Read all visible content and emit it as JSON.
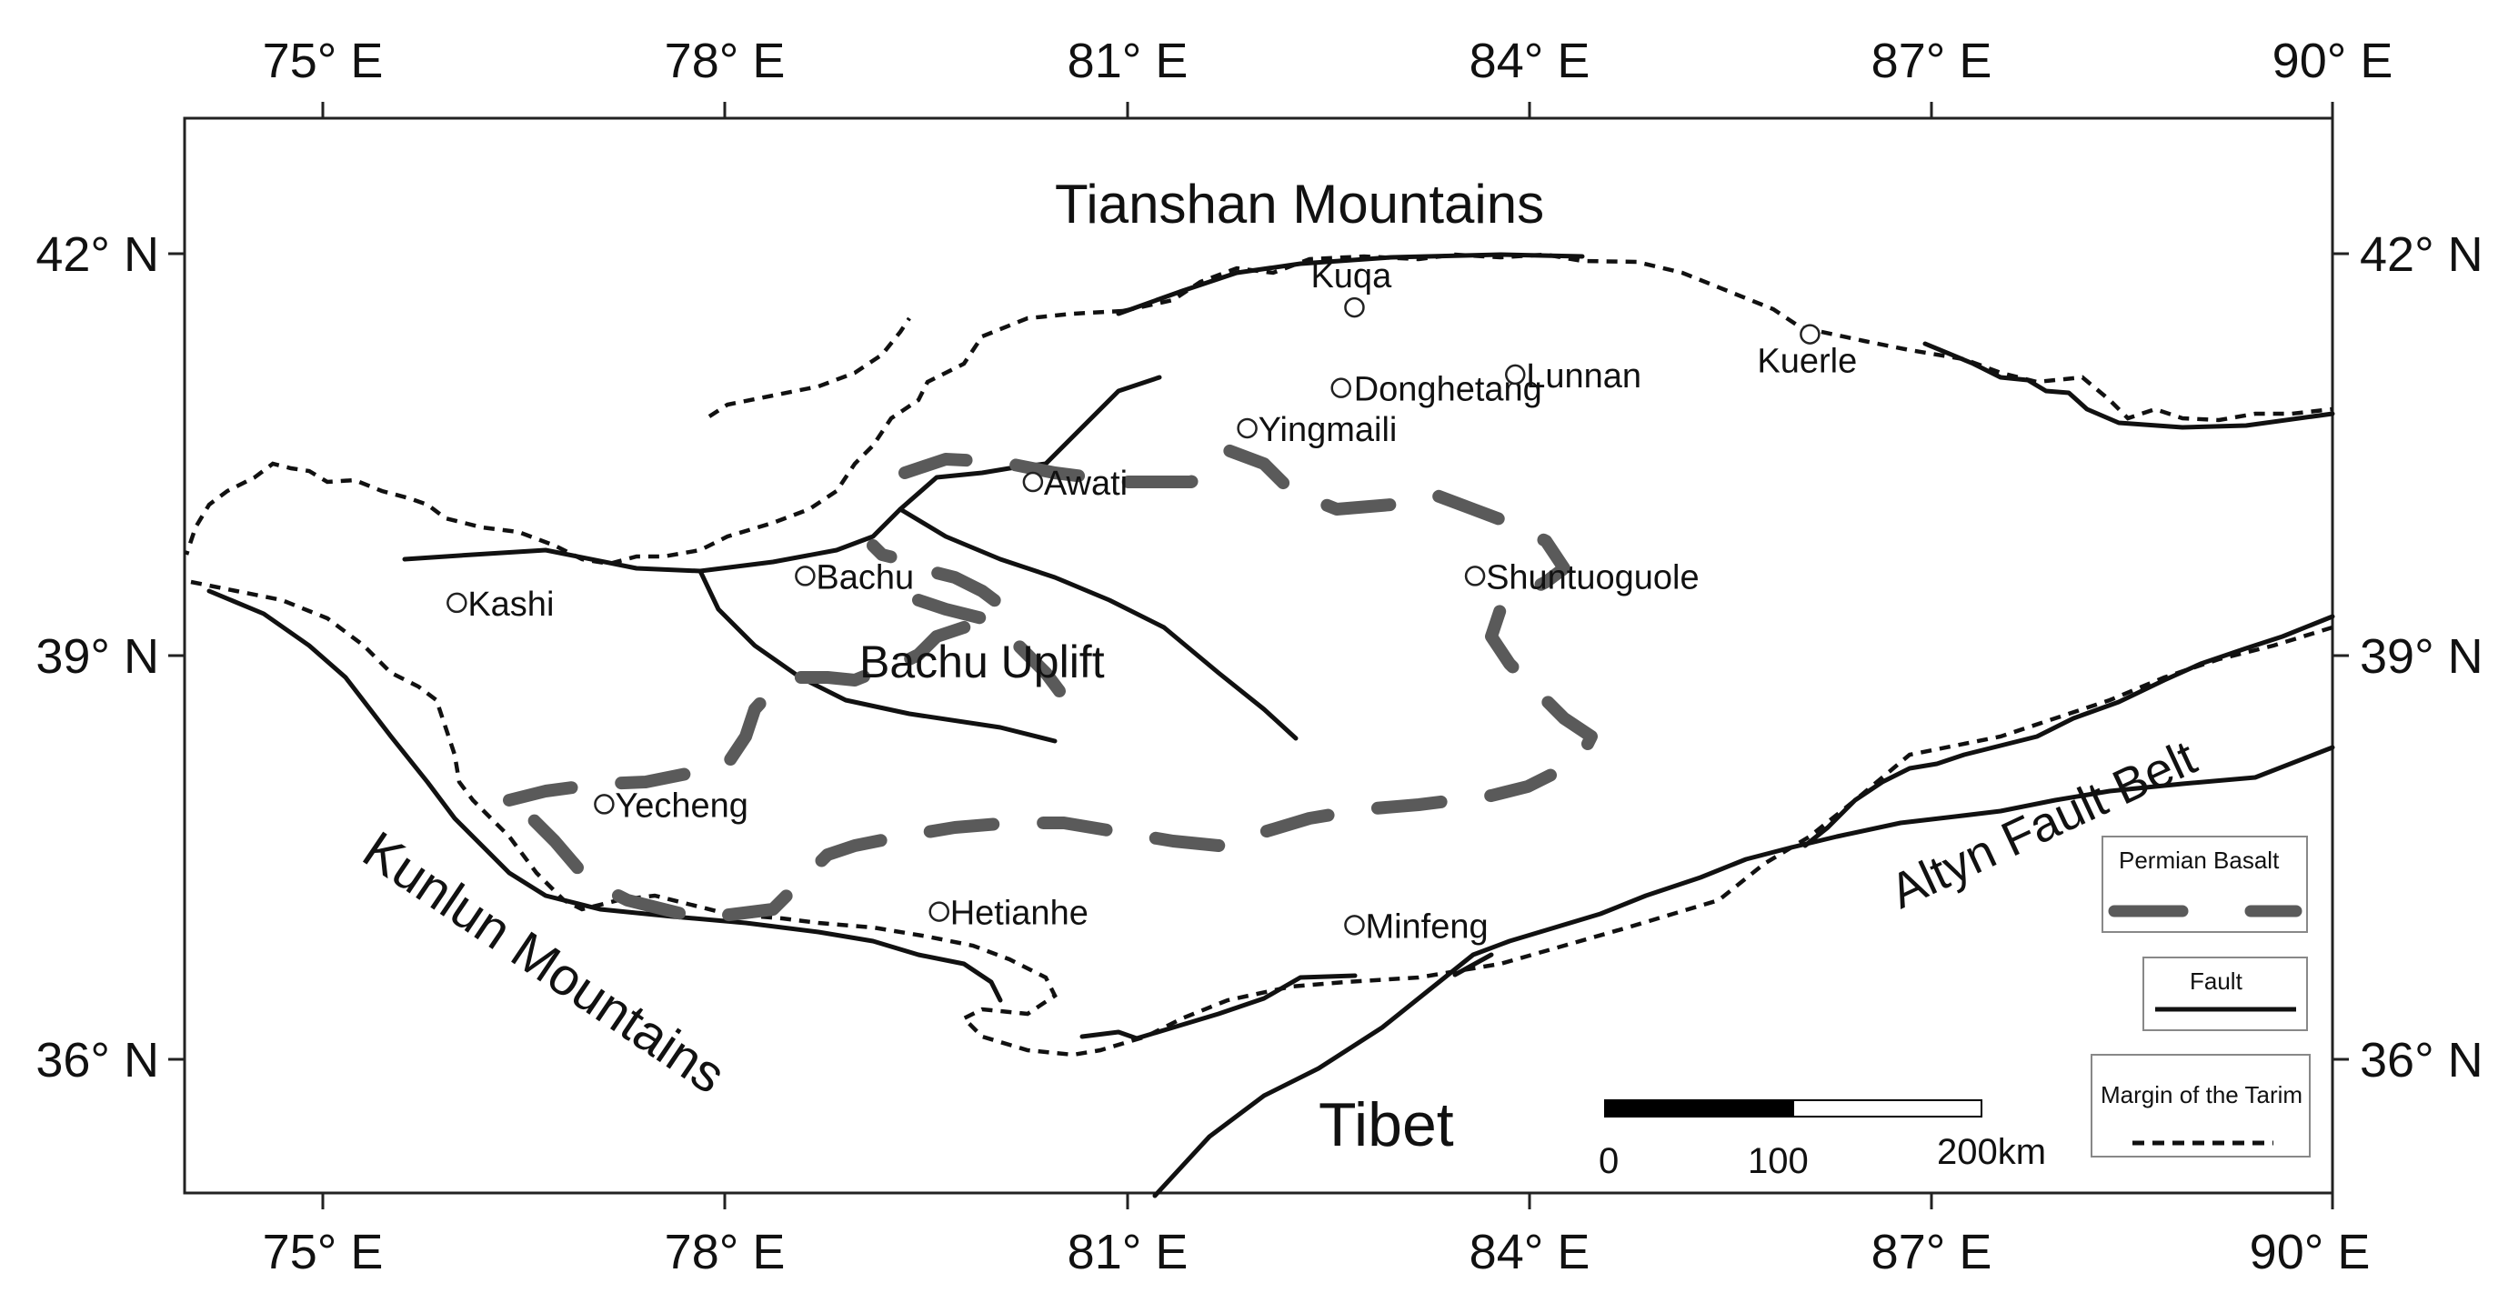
{
  "regions": {
    "tianshan": "Tianshan Mountains",
    "kunlun": "Kunlun Mountains",
    "altyn": "Altyn Fault Belt",
    "tibet": "Tibet",
    "bachu_uplift": "Bachu Uplift"
  },
  "axes": {
    "lon_ticks": [
      "75° E",
      "78° E",
      "81° E",
      "84° E",
      "87° E",
      "90° E"
    ],
    "lat_ticks": [
      "42° N",
      "39° N",
      "36° N"
    ]
  },
  "cities": [
    {
      "name": "Kuqa",
      "lon": 82.7,
      "lat": 41.6
    },
    {
      "name": "Donghetang",
      "lon": 82.6,
      "lat": 41.0
    },
    {
      "name": "Lunnan",
      "lon": 83.9,
      "lat": 41.1
    },
    {
      "name": "Kuerle",
      "lon": 86.1,
      "lat": 41.4
    },
    {
      "name": "Yingmaili",
      "lon": 81.9,
      "lat": 40.7
    },
    {
      "name": "Awati",
      "lon": 80.3,
      "lat": 40.3
    },
    {
      "name": "Bachu",
      "lon": 78.6,
      "lat": 39.6
    },
    {
      "name": "Shuntuoguole",
      "lon": 83.6,
      "lat": 39.6
    },
    {
      "name": "Kashi",
      "lon": 76.0,
      "lat": 39.4
    },
    {
      "name": "Yecheng",
      "lon": 77.1,
      "lat": 37.9
    },
    {
      "name": "Hetianhe",
      "lon": 79.6,
      "lat": 37.1
    },
    {
      "name": "Minfeng",
      "lon": 82.7,
      "lat": 37.0
    }
  ],
  "legend": {
    "basalt": "Permian Basalt",
    "fault": "Fault",
    "margin": "Margin of the Tarim"
  },
  "scale_bar": {
    "labels": [
      "0",
      "100",
      "200km"
    ]
  }
}
